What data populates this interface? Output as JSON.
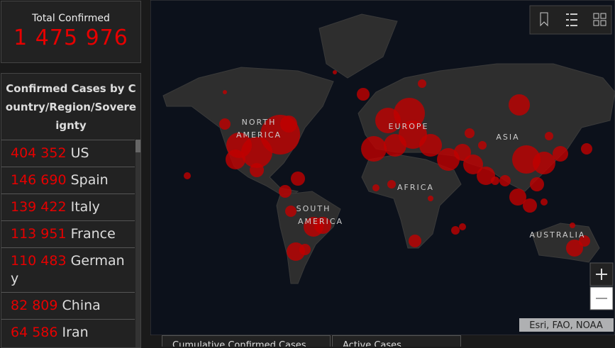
{
  "total": {
    "label": "Total Confirmed",
    "value": "1 475 976"
  },
  "list": {
    "title": "Confirmed Cases by Country/Region/Sovereignty",
    "rows": [
      {
        "count": "404 352",
        "name": "US"
      },
      {
        "count": "146 690",
        "name": "Spain"
      },
      {
        "count": "139 422",
        "name": "Italy"
      },
      {
        "count": "113 951",
        "name": "France"
      },
      {
        "count": "110 483",
        "name": "Germany"
      },
      {
        "count": "82 809",
        "name": "China"
      },
      {
        "count": "64 586",
        "name": "Iran"
      }
    ]
  },
  "map": {
    "labels": [
      "NORTH AMERICA",
      "EUROPE",
      "ASIA",
      "AFRICA",
      "SOUTH AMERICA",
      "AUSTRALIA"
    ],
    "attribution": "Esri, FAO, NOAA"
  },
  "tabs": [
    "Cumulative Confirmed Cases",
    "Active Cases"
  ]
}
